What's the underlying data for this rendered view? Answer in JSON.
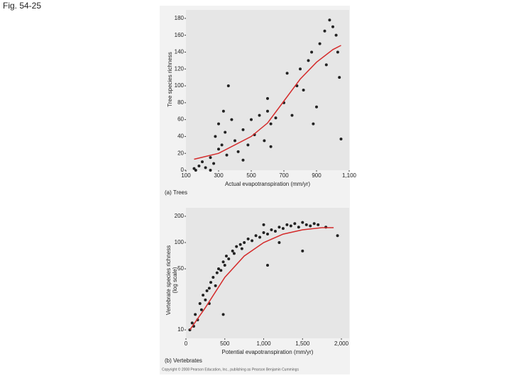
{
  "figure_label": "Fig. 54-25",
  "copyright": "Copyright © 2008 Pearson Education, Inc., publishing as Pearson Benjamin Cummings",
  "chart_data": [
    {
      "type": "scatter",
      "panel_label": "(a) Trees",
      "x_label": "Actual evapotranspiration (mm/yr)",
      "y_label": "Tree species richness",
      "xlim": [
        100,
        1100
      ],
      "ylim": [
        0,
        190
      ],
      "xticks": [
        100,
        300,
        500,
        700,
        900,
        {
          "value": 1100,
          "label": "1,100"
        }
      ],
      "yticks": [
        0,
        20,
        40,
        60,
        80,
        100,
        120,
        140,
        160,
        180
      ],
      "point_color": "#222222",
      "points": {
        "x": [
          150,
          160,
          180,
          200,
          220,
          250,
          270,
          280,
          300,
          300,
          320,
          330,
          340,
          350,
          360,
          380,
          400,
          420,
          450,
          480,
          500,
          520,
          550,
          600,
          600,
          620,
          650,
          700,
          720,
          750,
          780,
          800,
          820,
          850,
          870,
          900,
          920,
          950,
          980,
          1000,
          1020,
          1030,
          1050,
          1040,
          880,
          960,
          580,
          450,
          250,
          620
        ],
        "y": [
          2,
          0,
          5,
          10,
          3,
          15,
          8,
          40,
          25,
          55,
          30,
          70,
          45,
          18,
          100,
          60,
          35,
          22,
          48,
          30,
          60,
          42,
          65,
          85,
          70,
          55,
          62,
          80,
          115,
          65,
          100,
          120,
          95,
          130,
          140,
          75,
          150,
          165,
          178,
          170,
          160,
          140,
          37,
          110,
          55,
          125,
          35,
          12,
          0,
          28
        ]
      },
      "fit": {
        "color": "#d42a2a",
        "x": [
          150,
          300,
          500,
          600,
          700,
          800,
          900,
          1000,
          1050
        ],
        "y": [
          13,
          20,
          40,
          56,
          82,
          108,
          128,
          143,
          148
        ]
      }
    },
    {
      "type": "scatter",
      "panel_label": "(b) Vertebrates",
      "x_label": "Potential evapotranspiration (mm/yr)",
      "y_label": "Vertebrate species richness",
      "y_label_2": "(log scale)",
      "ylog": true,
      "xlim": [
        0,
        2100
      ],
      "ylim": [
        8,
        250
      ],
      "xticks": [
        0,
        500,
        {
          "value": 1000,
          "label": "1,000"
        },
        {
          "value": 1500,
          "label": "1,500"
        },
        {
          "value": 2000,
          "label": "2,000"
        }
      ],
      "yticks": [
        10,
        50,
        100,
        200
      ],
      "point_color": "#222222",
      "points": {
        "x": [
          50,
          80,
          100,
          120,
          150,
          180,
          200,
          220,
          250,
          270,
          300,
          320,
          350,
          380,
          400,
          420,
          450,
          480,
          500,
          520,
          550,
          600,
          620,
          650,
          700,
          720,
          750,
          800,
          850,
          900,
          950,
          1000,
          1050,
          1100,
          1150,
          1200,
          1250,
          1300,
          1350,
          1400,
          1450,
          1500,
          1550,
          1600,
          1650,
          1700,
          1800,
          1950,
          1050,
          1500,
          480,
          1000,
          300,
          1200
        ],
        "y": [
          10,
          12,
          11,
          15,
          13,
          20,
          17,
          25,
          22,
          28,
          30,
          35,
          40,
          32,
          45,
          50,
          48,
          60,
          55,
          70,
          65,
          80,
          75,
          90,
          95,
          85,
          100,
          110,
          105,
          120,
          115,
          130,
          125,
          140,
          135,
          150,
          145,
          160,
          155,
          165,
          150,
          170,
          160,
          155,
          165,
          160,
          150,
          120,
          55,
          80,
          15,
          160,
          20,
          100
        ]
      },
      "fit": {
        "color": "#d42a2a",
        "x": [
          50,
          250,
          500,
          750,
          1000,
          1250,
          1500,
          1750,
          1900
        ],
        "y": [
          10,
          18,
          40,
          70,
          100,
          125,
          140,
          148,
          148
        ]
      }
    }
  ]
}
